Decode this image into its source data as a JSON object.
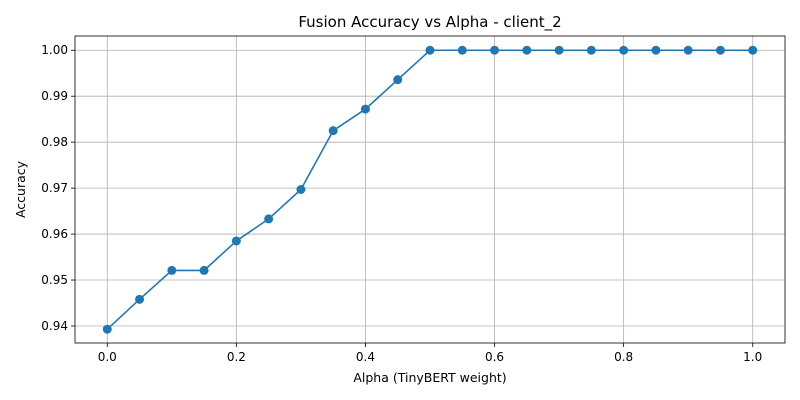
{
  "chart_data": {
    "type": "line",
    "title": "Fusion Accuracy vs Alpha - client_2",
    "xlabel": "Alpha (TinyBERT weight)",
    "ylabel": "Accuracy",
    "xlim": [
      -0.05,
      1.05
    ],
    "ylim": [
      0.9363,
      1.0031
    ],
    "xticks": [
      0.0,
      0.2,
      0.4,
      0.6,
      0.8,
      1.0
    ],
    "xtick_labels": [
      "0.0",
      "0.2",
      "0.4",
      "0.6",
      "0.8",
      "1.0"
    ],
    "yticks": [
      0.94,
      0.95,
      0.96,
      0.97,
      0.98,
      0.99,
      1.0
    ],
    "ytick_labels": [
      "0.94",
      "0.95",
      "0.96",
      "0.97",
      "0.98",
      "0.99",
      "1.00"
    ],
    "grid": true,
    "marker": "circle",
    "color": "#1f77b4",
    "x": [
      0.0,
      0.05,
      0.1,
      0.15,
      0.2,
      0.25,
      0.3,
      0.35,
      0.4,
      0.45,
      0.5,
      0.55,
      0.6,
      0.65,
      0.7,
      0.75,
      0.8,
      0.85,
      0.9,
      0.95,
      1.0
    ],
    "y": [
      0.9393,
      0.9458,
      0.9521,
      0.9521,
      0.9585,
      0.9633,
      0.9697,
      0.9825,
      0.9872,
      0.9936,
      1.0,
      1.0,
      1.0,
      1.0,
      1.0,
      1.0,
      1.0,
      1.0,
      1.0,
      1.0,
      1.0
    ]
  }
}
